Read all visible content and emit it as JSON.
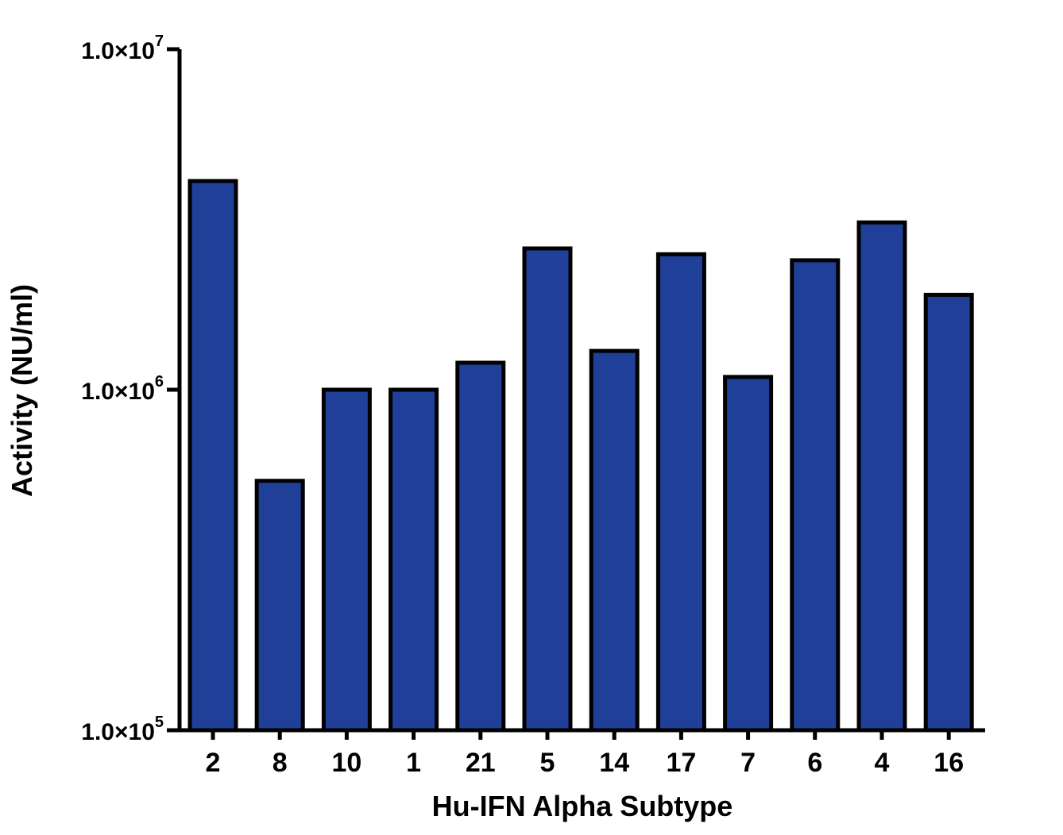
{
  "chart_data": {
    "type": "bar",
    "title": "",
    "xlabel": "Hu-IFN Alpha Subtype",
    "ylabel": "Activity (NU/ml)",
    "yscale": "log",
    "ylim": [
      100000,
      10000000
    ],
    "yticks": [
      {
        "value": 100000,
        "base": "1.0×10",
        "exp": "5"
      },
      {
        "value": 1000000,
        "base": "1.0×10",
        "exp": "6"
      },
      {
        "value": 10000000,
        "base": "1.0×10",
        "exp": "7"
      }
    ],
    "categories": [
      "2",
      "8",
      "10",
      "1",
      "21",
      "5",
      "14",
      "17",
      "7",
      "6",
      "4",
      "16"
    ],
    "values": [
      4100000,
      540000,
      1000000,
      1000000,
      1200000,
      2600000,
      1300000,
      2500000,
      1090000,
      2400000,
      3100000,
      1900000
    ],
    "bar_color": "#1f3f98",
    "grid": false,
    "legend": "none"
  }
}
